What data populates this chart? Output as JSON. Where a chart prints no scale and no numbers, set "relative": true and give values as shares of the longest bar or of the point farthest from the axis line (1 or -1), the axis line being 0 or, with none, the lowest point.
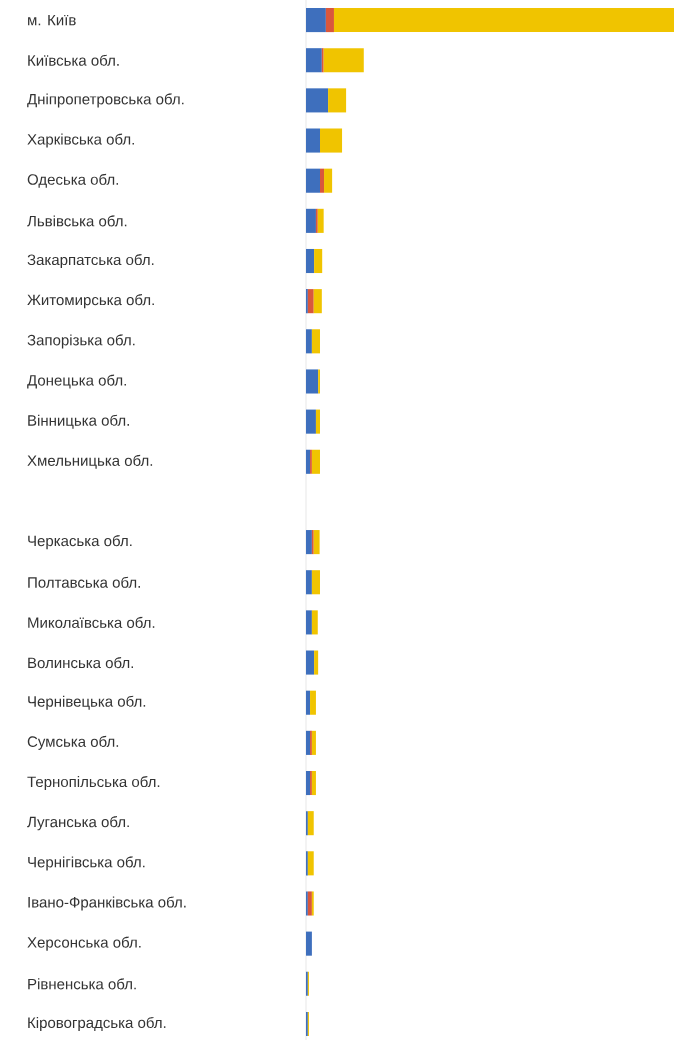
{
  "chart_data": {
    "type": "bar",
    "orientation": "horizontal",
    "stacked": true,
    "relative": true,
    "categories": [
      "м. Київ",
      "Київська обл.",
      "Дніпропетровська обл.",
      "Харківська обл.",
      "Одеська обл.",
      "Львівська обл.",
      "Закарпатська обл.",
      "Житомирська обл.",
      "Запорізька обл.",
      "Донецька обл.",
      "Вінницька обл.",
      "Хмельницька обл.",
      null,
      "Черкаська обл.",
      "Полтавська обл.",
      "Миколаївська обл.",
      "Волинська обл.",
      "Чернівецька обл.",
      "Сумська обл.",
      "Тернопільська обл.",
      "Луганська обл.",
      "Чернігівська обл.",
      "Івано-Франківська обл.",
      "Херсонська обл.",
      "Рівненська обл.",
      "Кіровоградська обл."
    ],
    "series": [
      {
        "color": "#3e6fbd",
        "values": [
          0.054,
          0.043,
          0.06,
          0.038,
          0.038,
          0.027,
          0.022,
          0.005,
          0.016,
          0.033,
          0.027,
          0.011,
          null,
          0.016,
          0.016,
          0.016,
          0.022,
          0.011,
          0.011,
          0.011,
          0.005,
          0.005,
          0.005,
          0.016,
          0.005,
          0.005
        ]
      },
      {
        "color": "#d9573c",
        "values": [
          0.022,
          0.005,
          null,
          null,
          0.011,
          0.005,
          null,
          0.016,
          null,
          null,
          null,
          0.005,
          null,
          0.005,
          null,
          null,
          null,
          null,
          0.005,
          0.005,
          null,
          null,
          0.011,
          null,
          null,
          null
        ]
      },
      {
        "color": "#f0c400",
        "values": [
          0.924,
          0.109,
          0.049,
          0.06,
          0.022,
          0.016,
          0.022,
          0.022,
          0.022,
          0.005,
          0.011,
          0.022,
          null,
          0.016,
          0.022,
          0.016,
          0.011,
          0.016,
          0.011,
          0.011,
          0.016,
          0.016,
          0.005,
          null,
          0.003,
          0.003
        ]
      }
    ],
    "grid": false
  }
}
